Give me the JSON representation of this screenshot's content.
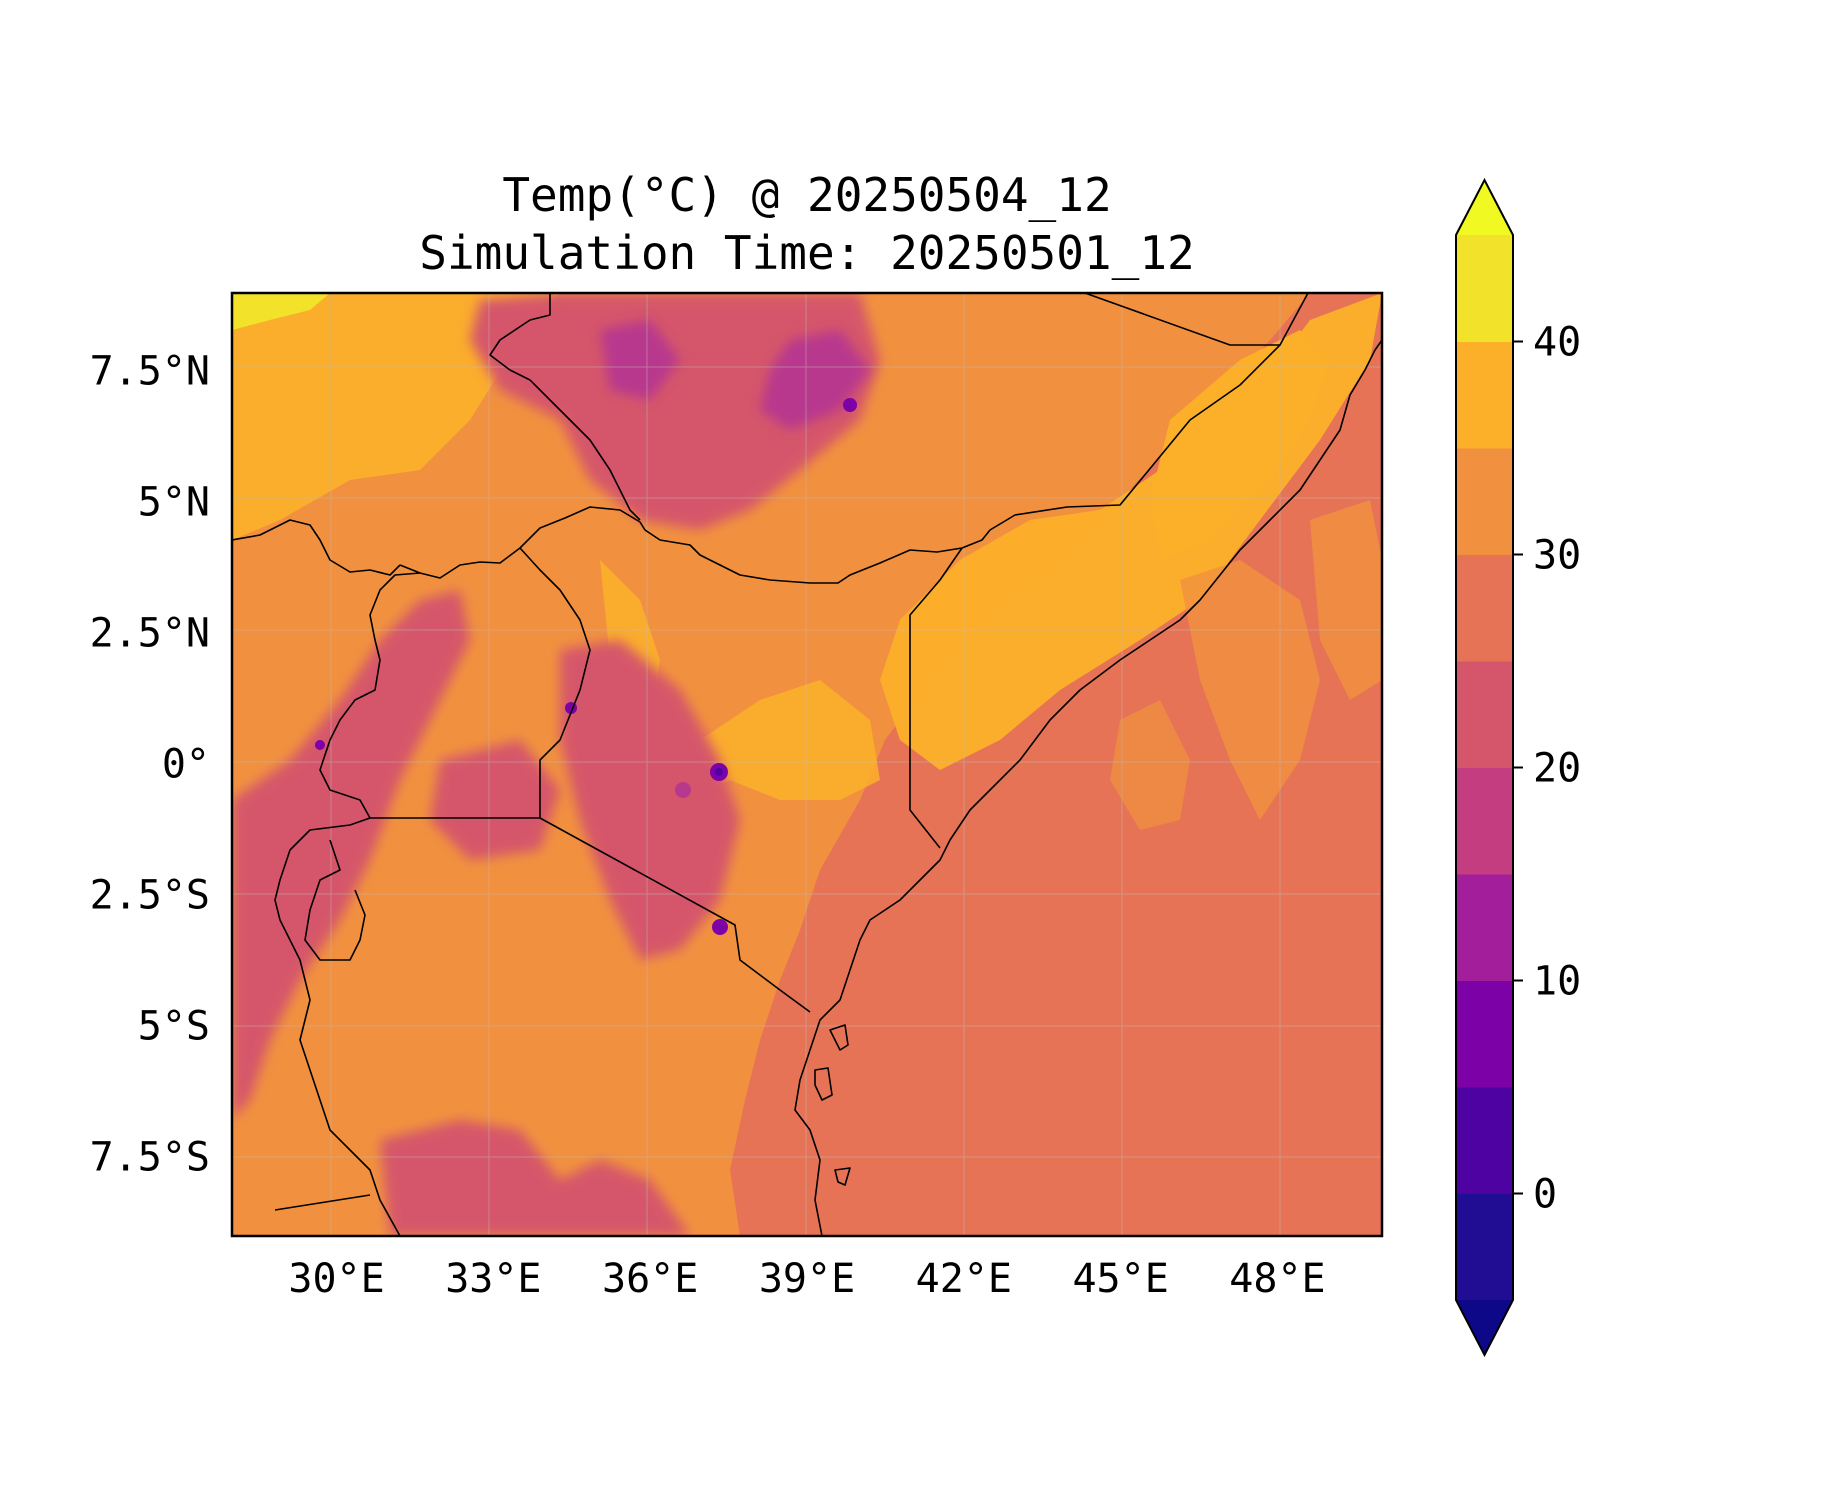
{
  "title": {
    "line1": "Temp(°C) @ 20250504_12",
    "line2": "Simulation Time: 20250501_12"
  },
  "map": {
    "type": "filled-contour",
    "variable": "Temp(°C)",
    "extent": {
      "lon": [
        28.0,
        50.0
      ],
      "lat": [
        -9.0,
        9.0
      ]
    },
    "lon_ticks": [
      {
        "value": 30,
        "label": "30°E"
      },
      {
        "value": 33,
        "label": "33°E"
      },
      {
        "value": 36,
        "label": "36°E"
      },
      {
        "value": 39,
        "label": "39°E"
      },
      {
        "value": 42,
        "label": "42°E"
      },
      {
        "value": 45,
        "label": "45°E"
      },
      {
        "value": 48,
        "label": "48°E"
      }
    ],
    "lat_ticks": [
      {
        "value": 7.5,
        "label": "7.5°N"
      },
      {
        "value": 5,
        "label": "5°N"
      },
      {
        "value": 2.5,
        "label": "2.5°N"
      },
      {
        "value": 0,
        "label": "0°"
      },
      {
        "value": -2.5,
        "label": "2.5°S"
      },
      {
        "value": -5,
        "label": "5°S"
      },
      {
        "value": -7.5,
        "label": "7.5°S"
      }
    ],
    "gridlines": true,
    "colors": {
      "ocean": "#e67356",
      "land_base": "#f1913f",
      "warm": "#fcb02a",
      "hot": "#f2e22a",
      "highland": "#d5566a",
      "cool": "#b8388e"
    }
  },
  "colorbar": {
    "levels": [
      -5,
      0,
      5,
      10,
      15,
      20,
      25,
      30,
      35,
      40,
      45
    ],
    "colors": [
      "#210c94",
      "#4f02a2",
      "#7c02a7",
      "#a31e9a",
      "#c33d80",
      "#d5566a",
      "#e67356",
      "#f1913f",
      "#fcb02a",
      "#f3e22a"
    ],
    "under_color": "#0d0887",
    "over_color": "#f0f921",
    "extend": "both",
    "tick_labels": [
      {
        "value": 0,
        "label": "0"
      },
      {
        "value": 10,
        "label": "10"
      },
      {
        "value": 20,
        "label": "20"
      },
      {
        "value": 30,
        "label": "30"
      },
      {
        "value": 40,
        "label": "40"
      }
    ]
  }
}
